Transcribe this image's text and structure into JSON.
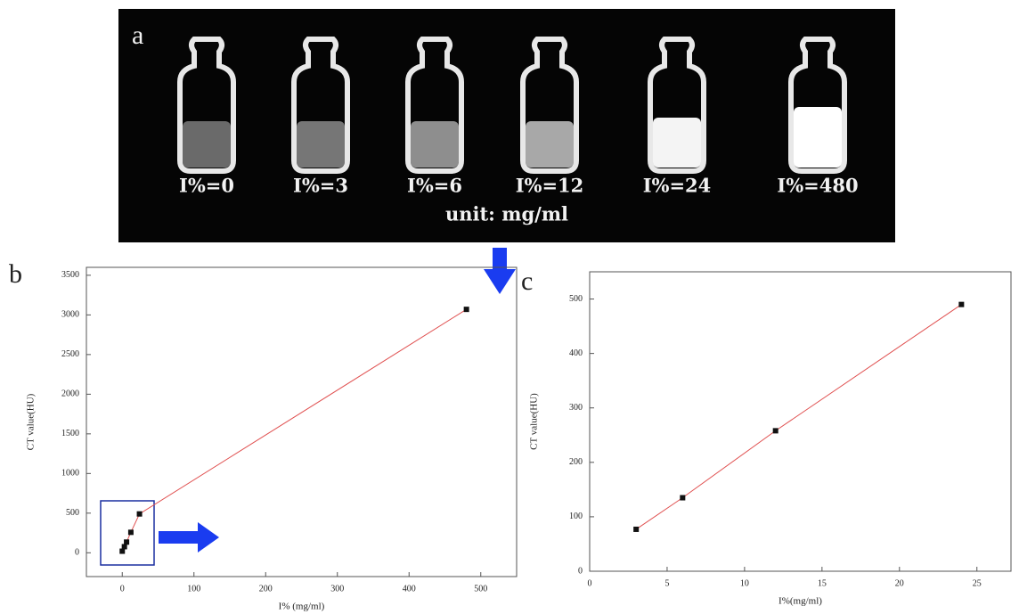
{
  "image_panel": {
    "label": "a",
    "captions": [
      "I%=0",
      "I%=3",
      "I%=6",
      "I%=12",
      "I%=24",
      "I%=480"
    ],
    "unit": "unit: mg/ml"
  },
  "chart_data": [
    {
      "type": "scatter",
      "label": "b",
      "connect": true,
      "color": "#111111",
      "line_color": "#e05050",
      "xlabel": "I% (mg/ml)",
      "ylabel": "CT value(HU)",
      "x": [
        0,
        3,
        6,
        12,
        24,
        480
      ],
      "values": [
        20,
        77,
        135,
        258,
        490,
        3070
      ],
      "xlim": [
        -50,
        550
      ],
      "xticks": [
        0,
        100,
        200,
        300,
        400,
        500
      ],
      "ylim": [
        -300,
        3600
      ],
      "yticks": [
        0,
        500,
        1000,
        1500,
        2000,
        2500,
        3000,
        3500
      ]
    },
    {
      "type": "scatter",
      "label": "c",
      "connect": true,
      "color": "#111111",
      "line_color": "#e05050",
      "xlabel": "I%(mg/ml)",
      "ylabel": "CT value(HU)",
      "x": [
        3,
        6,
        12,
        24
      ],
      "values": [
        77,
        135,
        258,
        490
      ],
      "xlim": [
        0,
        27.2
      ],
      "xticks": [
        0,
        5,
        10,
        15,
        20,
        25
      ],
      "ylim": [
        0,
        550
      ],
      "yticks": [
        0,
        100,
        200,
        300,
        400,
        500
      ]
    }
  ]
}
